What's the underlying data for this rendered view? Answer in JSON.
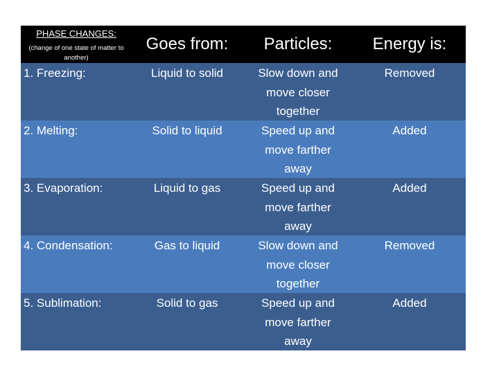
{
  "table": {
    "header": {
      "col1_title": "PHASE CHANGES:",
      "col1_subtitle": "(change of one state of matter to another)",
      "col2": "Goes from:",
      "col3": "Particles:",
      "col4": "Energy is:"
    },
    "rows": [
      {
        "phase": "1. Freezing:",
        "goes_from": "Liquid to solid",
        "particles": "Slow down and\nmove closer\ntogether",
        "energy": "Removed"
      },
      {
        "phase": "2. Melting:",
        "goes_from": "Solid to liquid",
        "particles": "Speed up and\nmove farther\naway",
        "energy": "Added"
      },
      {
        "phase": "3. Evaporation:",
        "goes_from": "Liquid to gas",
        "particles": "Speed up and\nmove farther\naway",
        "energy": "Added"
      },
      {
        "phase": "4. Condensation:",
        "goes_from": "Gas to liquid",
        "particles": "Slow down and\nmove closer\ntogether",
        "energy": "Removed"
      },
      {
        "phase": "5. Sublimation:",
        "goes_from": "Solid to gas",
        "particles": "Speed up and\nmove farther\naway",
        "energy": "Added"
      }
    ],
    "colors": {
      "header_bg": "#000000",
      "row_dark": "#3b5e8f",
      "row_light": "#4a7cbd",
      "text": "#ffffff"
    }
  }
}
